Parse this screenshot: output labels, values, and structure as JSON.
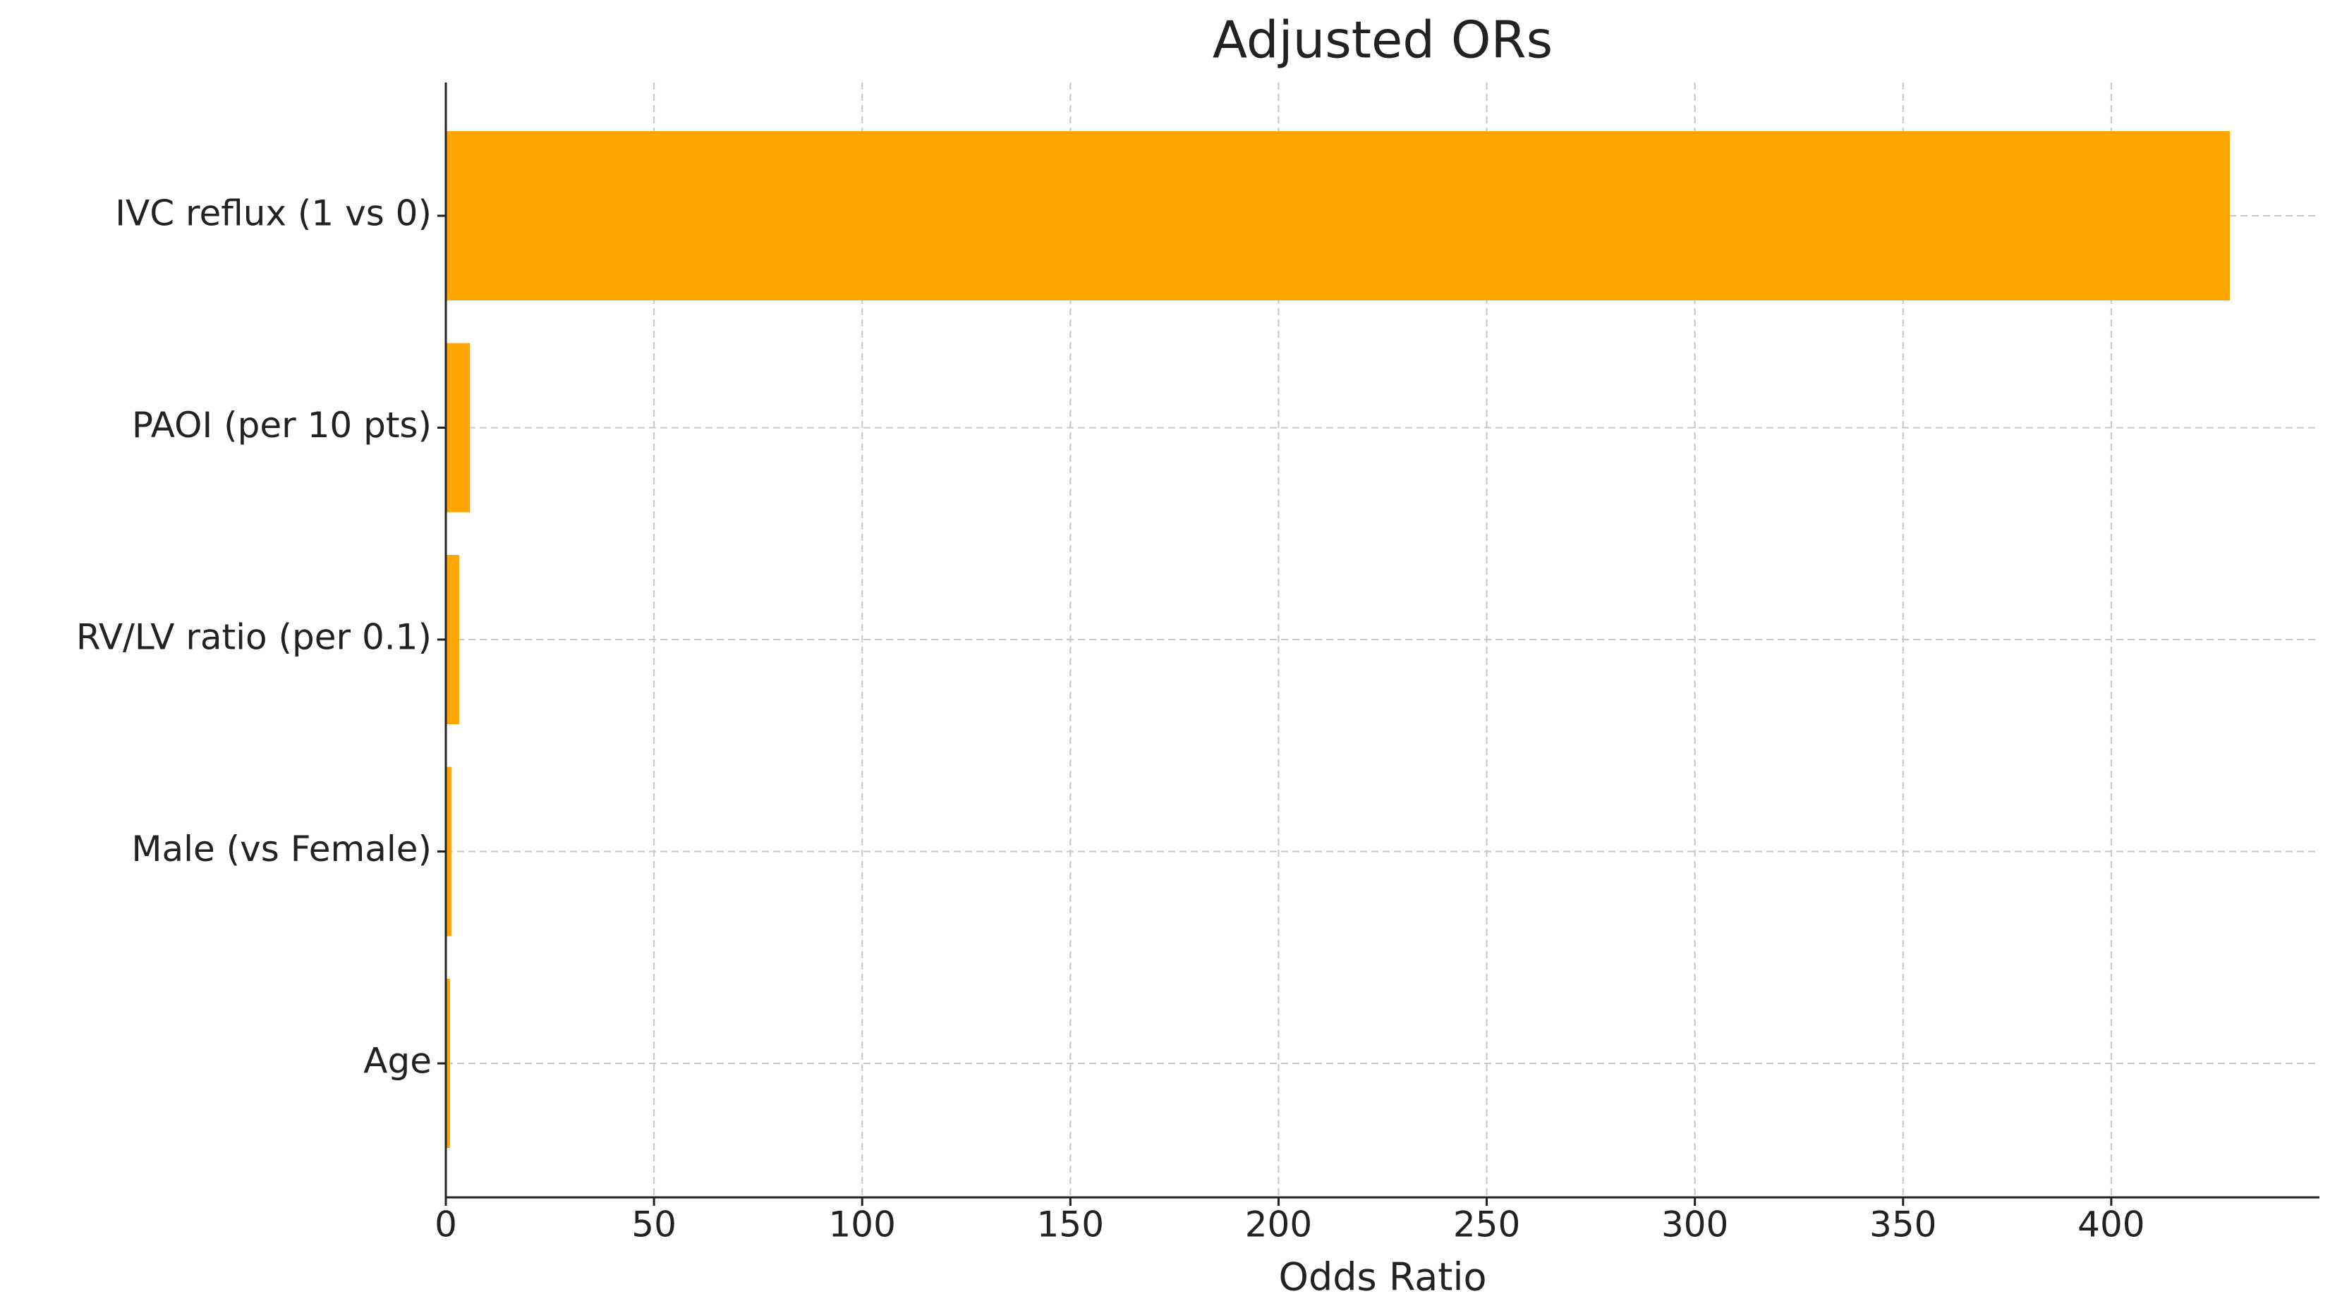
{
  "chart_data": {
    "type": "barh",
    "title": "Adjusted ORs",
    "x_label": "Odds Ratio",
    "categories": [
      "IVC reflux (1 vs 0)",
      "PAOI (per 10 pts)",
      "RV/LV ratio (per 0.1)",
      "Male (vs Female)",
      "Age"
    ],
    "values": [
      428.5,
      5.8,
      3.2,
      1.4,
      1.0
    ],
    "color": "#ffa500",
    "xlim": [
      0,
      450
    ],
    "xticks": [
      0,
      50,
      100,
      150,
      200,
      250,
      300,
      350,
      400
    ],
    "grid": true
  }
}
